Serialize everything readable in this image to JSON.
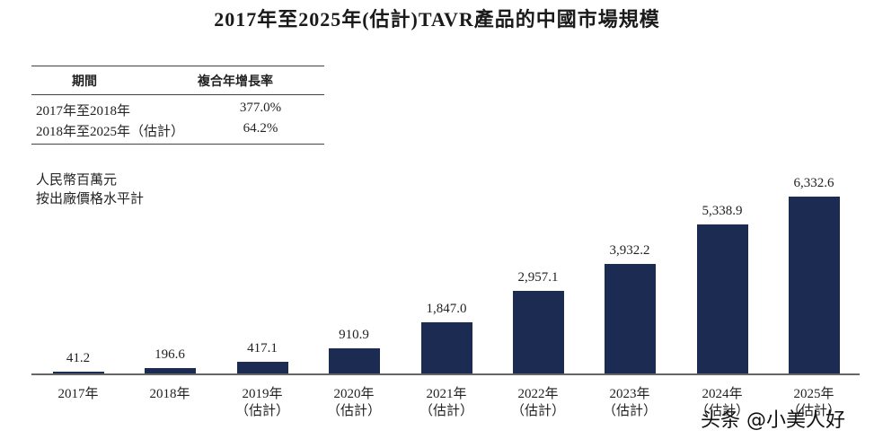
{
  "title": "2017年至2025年(估計)TAVR產品的中國市場規模",
  "cagr_table": {
    "headers": [
      "期間",
      "複合年增長率"
    ],
    "rows": [
      {
        "period": "2017年至2018年",
        "rate": "377.0%"
      },
      {
        "period": "2018年至2025年（估計）",
        "rate": "64.2%"
      }
    ]
  },
  "unit_note": [
    "人民幣百萬元",
    "按出廠價格水平計"
  ],
  "watermark": "头条 @小美人好",
  "colors": {
    "bar": "#1c2b52",
    "axis": "#666666"
  },
  "chart_data": {
    "type": "bar",
    "title": "2017年至2025年(估計)TAVR產品的中國市場規模",
    "xlabel": "",
    "ylabel": "人民幣百萬元 按出廠價格水平計",
    "categories": [
      "2017年",
      "2018年",
      "2019年（估計）",
      "2020年（估計）",
      "2021年（估計）",
      "2022年（估計）",
      "2023年（估計）",
      "2024年（估計）",
      "2025年（估計）"
    ],
    "values": [
      41.2,
      196.6,
      417.1,
      910.9,
      1847.0,
      2957.1,
      3932.2,
      5338.9,
      6332.6
    ],
    "value_labels": [
      "41.2",
      "196.6",
      "417.1",
      "910.9",
      "1,847.0",
      "2,957.1",
      "3,932.2",
      "5,338.9",
      "6,332.6"
    ],
    "x_labels": [
      {
        "year": "2017年",
        "note": ""
      },
      {
        "year": "2018年",
        "note": ""
      },
      {
        "year": "2019年",
        "note": "（估計）"
      },
      {
        "year": "2020年",
        "note": "（估計）"
      },
      {
        "year": "2021年",
        "note": "（估計）"
      },
      {
        "year": "2022年",
        "note": "（估計）"
      },
      {
        "year": "2023年",
        "note": "（估計）"
      },
      {
        "year": "2024年",
        "note": "（估計）"
      },
      {
        "year": "2025年",
        "note": "（估計）"
      }
    ],
    "grid": false,
    "legend": "none",
    "ylim": [
      0,
      6500
    ]
  }
}
